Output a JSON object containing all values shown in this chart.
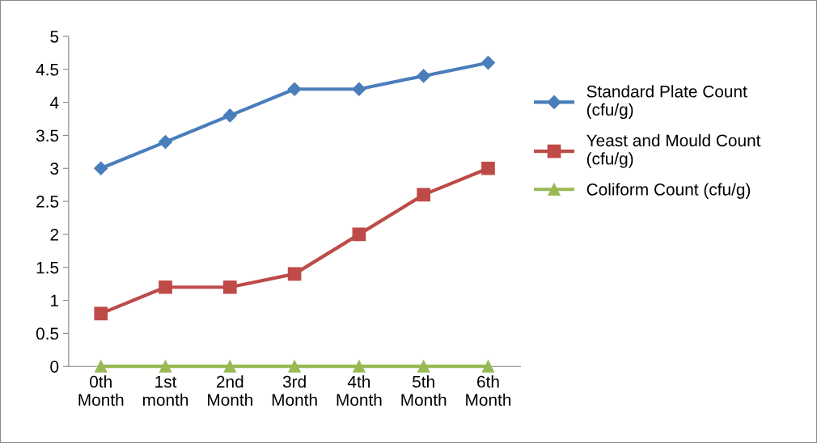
{
  "chart_data": {
    "type": "line",
    "categories": [
      "0th\nMonth",
      "1st\nmonth",
      "2nd\nMonth",
      "3rd\nMonth",
      "4th\nMonth",
      "5th\nMonth",
      "6th\nMonth"
    ],
    "series": [
      {
        "name": "Standard Plate Count\n(cfu/g)",
        "color": "#4a7ebb",
        "marker": "diamond",
        "values": [
          3,
          3.4,
          3.8,
          4.2,
          4.2,
          4.4,
          4.6
        ]
      },
      {
        "name": "Yeast and Mould Count\n(cfu/g)",
        "color": "#be4b48",
        "marker": "square",
        "values": [
          0.8,
          1.2,
          1.2,
          1.4,
          2,
          2.6,
          3
        ]
      },
      {
        "name": "Coliform Count (cfu/g)",
        "color": "#98b954",
        "marker": "triangle",
        "values": [
          0,
          0,
          0,
          0,
          0,
          0,
          0
        ]
      }
    ],
    "ylim": [
      0,
      5
    ],
    "yticks": [
      0,
      0.5,
      1,
      1.5,
      2,
      2.5,
      3,
      3.5,
      4,
      4.5,
      5
    ],
    "grid": false,
    "legend": "right",
    "line_style": "solid"
  }
}
